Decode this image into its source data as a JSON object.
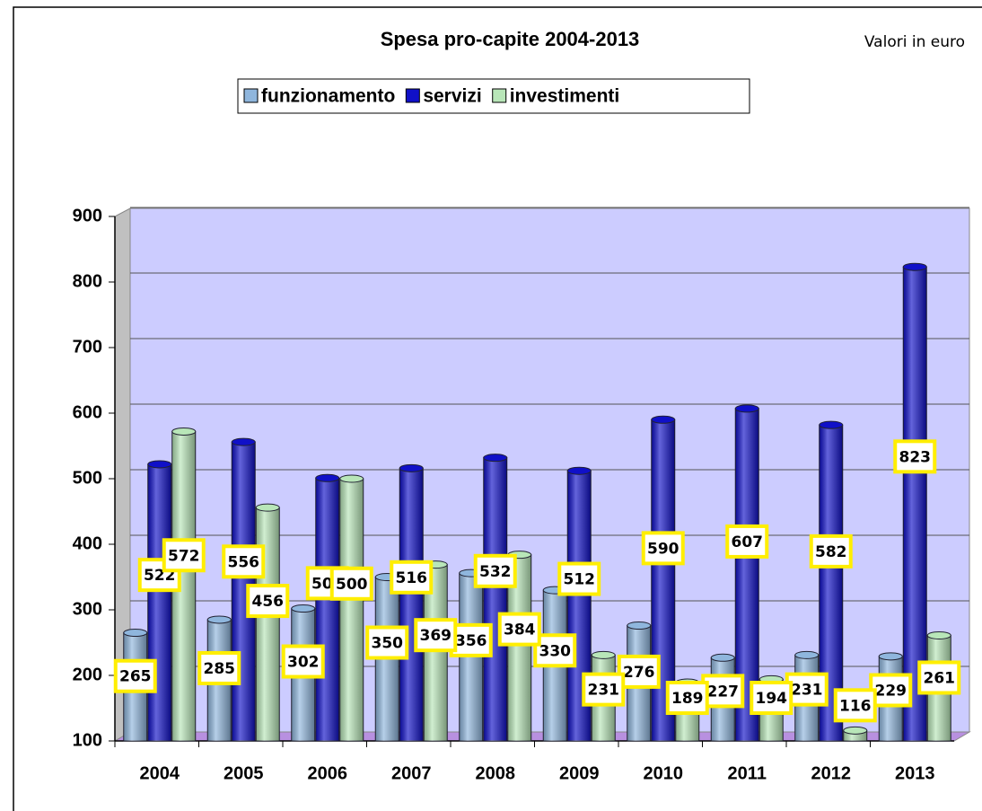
{
  "chart_data": {
    "type": "bar",
    "title": "Spesa pro-capite 2004-2013",
    "subtitle": "Valori in euro",
    "categories": [
      "2004",
      "2005",
      "2006",
      "2007",
      "2008",
      "2009",
      "2010",
      "2011",
      "2012",
      "2013"
    ],
    "series": [
      {
        "name": "funzionamento",
        "color": "#8fb6dd",
        "values": [
          265,
          285,
          302,
          350,
          356,
          330,
          276,
          227,
          231,
          229
        ]
      },
      {
        "name": "servizi",
        "color": "#1010c8",
        "values": [
          522,
          556,
          501,
          516,
          532,
          512,
          590,
          607,
          582,
          823
        ]
      },
      {
        "name": "investimenti",
        "color": "#b8e6b8",
        "values": [
          572,
          456,
          500,
          369,
          384,
          231,
          189,
          194,
          116,
          261
        ]
      }
    ],
    "ylim": [
      100,
      900
    ],
    "yticks": [
      100,
      200,
      300,
      400,
      500,
      600,
      700,
      800,
      900
    ],
    "grid": true
  }
}
